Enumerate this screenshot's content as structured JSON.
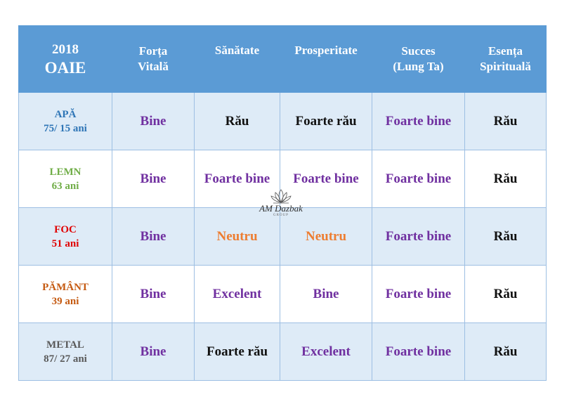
{
  "header": {
    "year": "2018",
    "sign": "OAIE",
    "columns": [
      {
        "line1": "Forța",
        "line2": "Vitală"
      },
      {
        "line1": "Sănătate",
        "line2": ""
      },
      {
        "line1": "Prosperitate",
        "line2": ""
      },
      {
        "line1": "Succes",
        "line2": "(Lung Ta)"
      },
      {
        "line1": "Esența",
        "line2": "Spirituală"
      }
    ]
  },
  "rows": [
    {
      "element": "APĂ",
      "ages": "75/ 15 ani",
      "cells": [
        "Bine",
        "Rău",
        "Foarte rău",
        "Foarte bine",
        "Rău"
      ]
    },
    {
      "element": "LEMN",
      "ages": "63 ani",
      "cells": [
        "Bine",
        "Foarte bine",
        "Foarte bine",
        "Foarte bine",
        "Rău"
      ]
    },
    {
      "element": "FOC",
      "ages": "51 ani",
      "cells": [
        "Bine",
        "Neutru",
        "Neutru",
        "Foarte bine",
        "Rău"
      ]
    },
    {
      "element": "PĂMÂNT",
      "ages": "39 ani",
      "cells": [
        "Bine",
        "Excelent",
        "Bine",
        "Foarte bine",
        "Rău"
      ]
    },
    {
      "element": "METAL",
      "ages": "87/ 27 ani",
      "cells": [
        "Bine",
        "Foarte rău",
        "Excelent",
        "Foarte bine",
        "Rău"
      ]
    }
  ],
  "watermark": {
    "brand": "AM Dazbak",
    "sub": "GROUP"
  },
  "colors": {
    "header_bg": "#5b9bd5",
    "row_shade": "#deebf7",
    "good_purple": "#7030a0",
    "neutral_orange": "#ed7d31",
    "bad_black": "#111111"
  }
}
